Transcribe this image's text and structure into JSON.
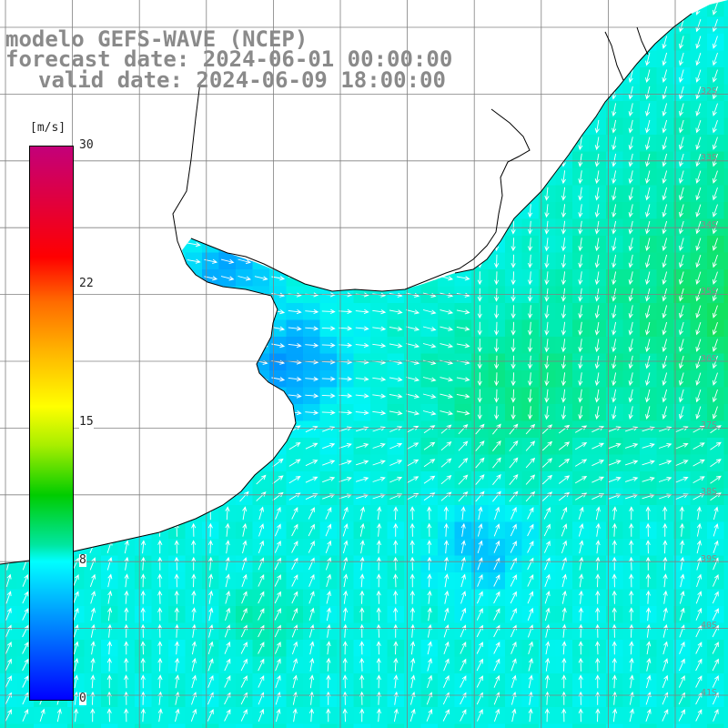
{
  "title": {
    "line1": "modelo GEFS-WAVE (NCEP)",
    "line2": "forecast date: 2024-06-01 00:00:00",
    "line3": "valid date: 2024-06-09 18:00:00"
  },
  "colorbar": {
    "unit": "[m/s]",
    "min": 0,
    "max": 30,
    "ticks": [
      "30",
      "22",
      "15",
      "8",
      "0"
    ],
    "tick_values": [
      30,
      22,
      15,
      8,
      0
    ]
  },
  "lon_labels": [
    "",
    "",
    "",
    "",
    "",
    "",
    "",
    "",
    "",
    "",
    ""
  ],
  "lat_labels": [
    "32S",
    "33S",
    "34S",
    "35S",
    "36S",
    "37S",
    "38S",
    "39S",
    "40S",
    "41S"
  ],
  "colors": {
    "land": "#ffffff",
    "coast": "#000000",
    "grid": "#808080",
    "arrows": "#ffffff",
    "text": "#8a8a8a"
  }
}
